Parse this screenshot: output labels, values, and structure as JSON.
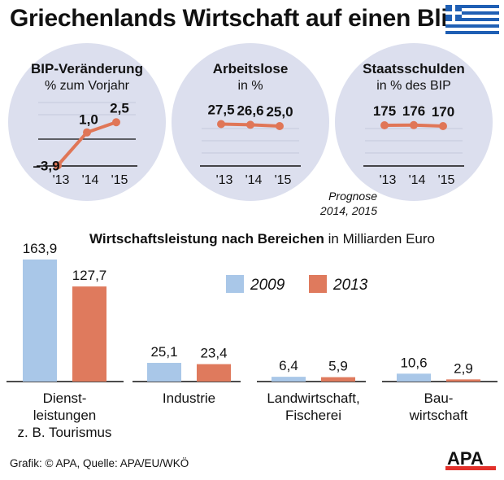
{
  "title": "Griechenlands Wirtschaft auf einen Blick",
  "prognose_note": [
    "Prognose",
    "2014, 2015"
  ],
  "footer": "Grafik: © APA, Quelle: APA/EU/WKÖ",
  "logo_text": "APA",
  "colors": {
    "circle": "#dcdfee",
    "line": "#e07657",
    "bar_2009": "#a9c7e8",
    "bar_2013": "#df7a5d",
    "text": "#111111"
  },
  "chart_data": [
    {
      "type": "line",
      "title": "BIP-Veränderung",
      "subtitle": "% zum Vorjahr",
      "x": [
        "'13",
        "'14",
        "'15"
      ],
      "values": [
        -3.9,
        1.0,
        2.5
      ],
      "labels": [
        "–3,9",
        "1,0",
        "2,5"
      ],
      "ylim": [
        -5,
        4
      ]
    },
    {
      "type": "line",
      "title": "Arbeitslose",
      "subtitle": "in %",
      "x": [
        "'13",
        "'14",
        "'15"
      ],
      "values": [
        27.5,
        26.6,
        25.0
      ],
      "labels": [
        "27,5",
        "26,6",
        "25,0"
      ],
      "ylim": [
        0,
        40
      ]
    },
    {
      "type": "line",
      "title": "Staatsschulden",
      "subtitle": "in % des BIP",
      "x": [
        "'13",
        "'14",
        "'15"
      ],
      "values": [
        175,
        176,
        170
      ],
      "labels": [
        "175",
        "176",
        "170"
      ],
      "ylim": [
        0,
        250
      ]
    },
    {
      "type": "bar",
      "title": "Wirtschaftsleistung nach Bereichen",
      "title_suffix": "in Milliarden Euro",
      "categories": [
        [
          "Dienst-",
          "leistungen",
          "z. B. Tourismus"
        ],
        [
          "Industrie"
        ],
        [
          "Landwirtschaft,",
          "Fischerei"
        ],
        [
          "Bau-",
          "wirtschaft"
        ]
      ],
      "series": [
        {
          "name": "2009",
          "values": [
            163.9,
            25.1,
            6.4,
            10.6
          ],
          "labels": [
            "163,9",
            "25,1",
            "6,4",
            "10,6"
          ]
        },
        {
          "name": "2013",
          "values": [
            127.7,
            23.4,
            5.9,
            2.9
          ],
          "labels": [
            "127,7",
            "23,4",
            "5,9",
            "2,9"
          ]
        }
      ],
      "ylim": [
        0,
        170
      ]
    }
  ]
}
